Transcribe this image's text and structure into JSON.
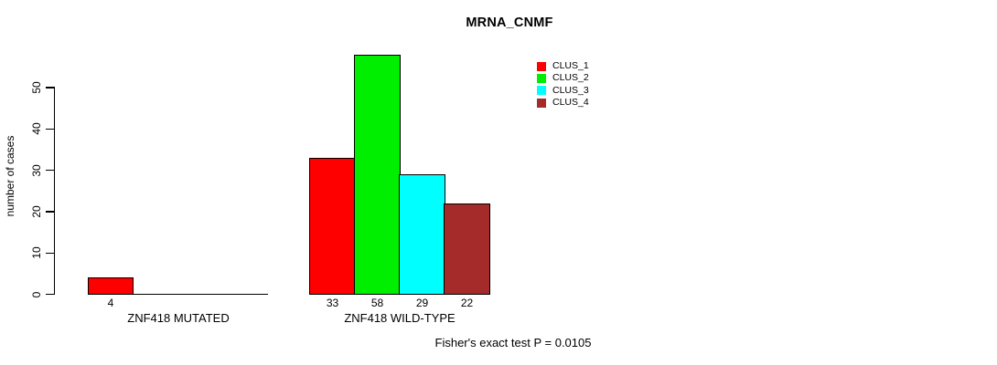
{
  "chart_data": {
    "type": "bar",
    "title": "MRNA_CNMF",
    "ylabel": "number of cases",
    "xlabel": "",
    "categories": [
      "ZNF418 MUTATED",
      "ZNF418 WILD-TYPE"
    ],
    "series": [
      {
        "name": "CLUS_1",
        "color": "#ff0000",
        "values": [
          4,
          33
        ]
      },
      {
        "name": "CLUS_2",
        "color": "#00ee00",
        "values": [
          0,
          58
        ]
      },
      {
        "name": "CLUS_3",
        "color": "#00ffff",
        "values": [
          0,
          29
        ]
      },
      {
        "name": "CLUS_4",
        "color": "#a52a2a",
        "values": [
          0,
          22
        ]
      }
    ],
    "bar_value_labels_shown": [
      [
        4,
        null,
        null,
        null
      ],
      [
        33,
        58,
        29,
        22
      ]
    ],
    "yticks": [
      0,
      10,
      20,
      30,
      40,
      50
    ],
    "ylim": [
      0,
      50
    ],
    "grid": false,
    "legend_position": "top-right",
    "axis_color": "#000000",
    "annotation": "Fisher's exact test P = 0.0105"
  }
}
